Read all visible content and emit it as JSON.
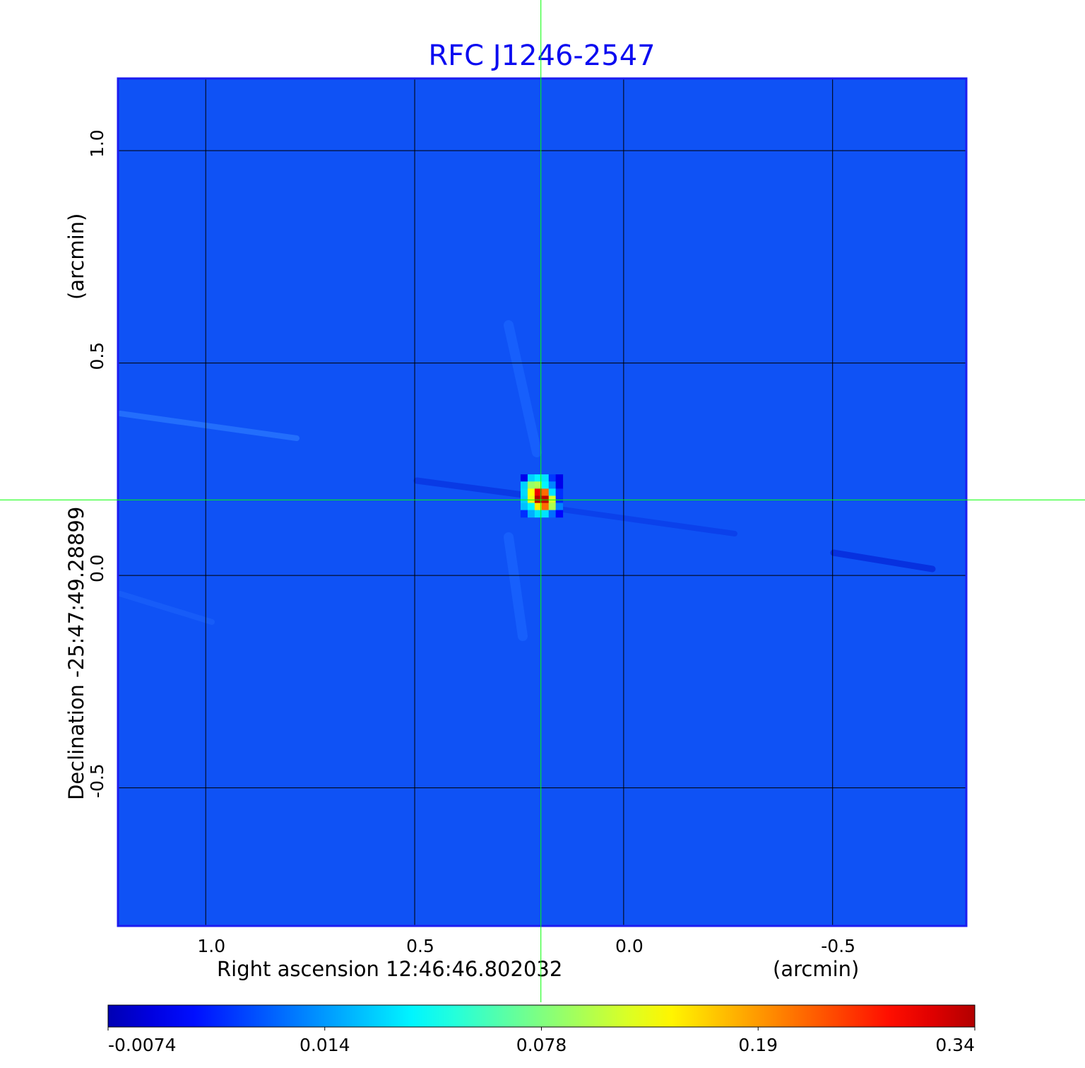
{
  "chart_data": {
    "type": "heatmap",
    "title": "RFC J1246-2547",
    "xlabel": "Right ascension  12:46:46.802032",
    "xunit": "(arcmin)",
    "ylabel": "Declination  -25:47:49.28899",
    "yunit": "(arcmin)",
    "xlim": [
      1.21,
      -0.82
    ],
    "ylim": [
      -0.825,
      1.17
    ],
    "xticks": [
      1.0,
      0.5,
      0.0,
      -0.5
    ],
    "xtick_labels": [
      "1.0",
      "0.5",
      "0.0",
      "-0.5"
    ],
    "yticks": [
      1.0,
      0.5,
      0.0,
      -0.5
    ],
    "ytick_labels": [
      "1.0",
      "0.5",
      "0.0",
      "-0.5"
    ],
    "grid": true,
    "crosshair": {
      "x": 0.198,
      "y": 0.178,
      "color": "#00ff00"
    },
    "background_value": -0.002,
    "peak_region": {
      "x_start": 0.2466,
      "y_start": 0.238,
      "cell_size": 0.0168,
      "values": [
        [
          -0.002,
          0.03,
          0.04,
          0.035,
          0.005,
          -0.002
        ],
        [
          0.03,
          0.09,
          0.1,
          0.04,
          0.012,
          -0.002
        ],
        [
          0.032,
          0.14,
          0.3,
          0.22,
          0.035,
          0.004
        ],
        [
          0.03,
          0.13,
          0.34,
          0.33,
          0.12,
          0.004
        ],
        [
          0.025,
          0.04,
          0.15,
          0.22,
          0.1,
          0.012
        ],
        [
          0.004,
          0.02,
          0.035,
          0.035,
          0.01,
          0.0
        ]
      ]
    },
    "colorbar": {
      "colormap": "jet",
      "tick_values": [
        -0.0074,
        0.014,
        0.078,
        0.19,
        0.34
      ],
      "tick_labels": [
        "-0.0074",
        "0.014",
        "0.078",
        "0.19",
        "0.34"
      ]
    },
    "colors": {
      "title": "#0b0bf0",
      "frame": "#1c1cf0",
      "background": "#0f52f5"
    }
  }
}
